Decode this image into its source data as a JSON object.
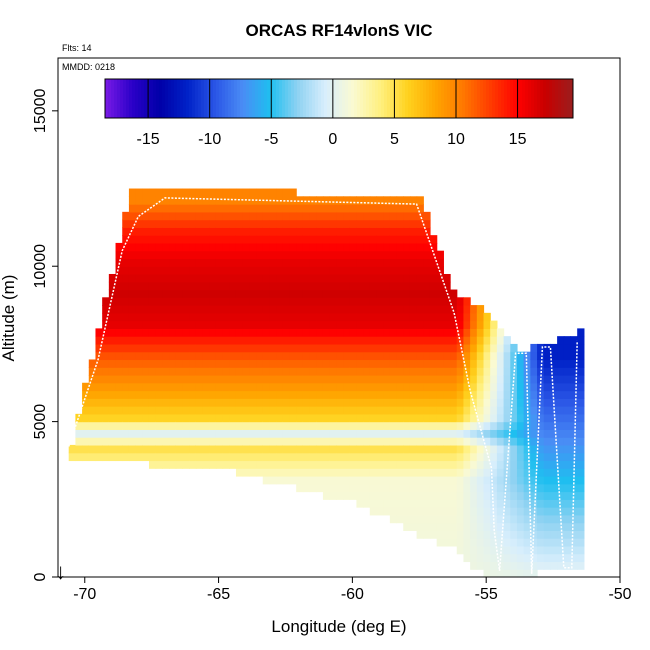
{
  "chart_data": {
    "type": "heatmap",
    "title": "ORCAS RF14vlonS VIC",
    "annotations": {
      "flts": "Flts: 14",
      "mmdd": "MMDD: 0218"
    },
    "xlabel": "Longitude (deg E)",
    "ylabel": "Altitude (m)",
    "xlim": [
      -71,
      -50
    ],
    "ylim": [
      0,
      16700
    ],
    "x_ticks": [
      -70,
      -65,
      -60,
      -55,
      -50
    ],
    "y_ticks": [
      0,
      5000,
      10000,
      15000
    ],
    "colorbar": {
      "range": [
        -18.5,
        19.5
      ],
      "ticks": [
        -15,
        -10,
        -5,
        0,
        5,
        10,
        15
      ],
      "colors": [
        "#7a1ae6",
        "#2a00c8",
        "#0000a8",
        "#0022c8",
        "#2a55e6",
        "#4a8cf5",
        "#1ebff0",
        "#8fd2f2",
        "#d8eefc",
        "#fafad2",
        "#fff080",
        "#ffd21e",
        "#ffa500",
        "#ff7800",
        "#ff3c00",
        "#ff0000",
        "#c80000",
        "#9b1e1e"
      ]
    },
    "profiles": [
      {
        "lon": -70.6,
        "alt_max": 4200,
        "alt_min": 3800
      },
      {
        "lon": -68.4,
        "alt_max": 12300,
        "alt_min": 3800
      },
      {
        "lon": -64.5,
        "alt_max": 12300,
        "alt_min": 3500
      },
      {
        "lon": -60.0,
        "alt_max": 12200,
        "alt_min": 2500
      },
      {
        "lon": -57.6,
        "alt_max": 12100,
        "alt_min": 1500
      },
      {
        "lon": -56.3,
        "alt_max": 9000,
        "alt_min": 1000
      },
      {
        "lon": -55.0,
        "alt_max": 8400,
        "alt_min": 0
      },
      {
        "lon": -53.8,
        "alt_max": 7200,
        "alt_min": 200
      },
      {
        "lon": -52.7,
        "alt_max": 7400,
        "alt_min": 300
      },
      {
        "lon": -51.5,
        "alt_max": 7800,
        "alt_min": 300
      }
    ],
    "temperature_levels": [
      {
        "alt": 0,
        "value": 1
      },
      {
        "alt": 3000,
        "value": 1.5
      },
      {
        "alt": 4000,
        "value": 5
      },
      {
        "alt": 4500,
        "value": 0
      },
      {
        "alt": 5000,
        "value": 6
      },
      {
        "alt": 6000,
        "value": 9
      },
      {
        "alt": 7000,
        "value": 12
      },
      {
        "alt": 8000,
        "value": 16
      },
      {
        "alt": 9000,
        "value": 17
      },
      {
        "alt": 10000,
        "value": 16
      },
      {
        "alt": 11000,
        "value": 14
      },
      {
        "alt": 12000,
        "value": 10
      }
    ],
    "gradient_zone": {
      "west_lon": -56.2,
      "east_lon": -53.0,
      "east_offset": -12
    },
    "flight_track": [
      [
        -70.6,
        4200
      ],
      [
        -69.5,
        7000
      ],
      [
        -68.6,
        10500
      ],
      [
        -68.0,
        11600
      ],
      [
        -67.0,
        12200
      ],
      [
        -57.6,
        12000
      ],
      [
        -56.2,
        8500
      ],
      [
        -55.6,
        6000
      ],
      [
        -54.8,
        3500
      ],
      [
        -54.7,
        1500
      ],
      [
        -54.5,
        200
      ],
      [
        -53.9,
        7200
      ],
      [
        -53.5,
        7200
      ],
      [
        -53.3,
        100
      ],
      [
        -52.9,
        7400
      ],
      [
        -52.6,
        7400
      ],
      [
        -52.1,
        300
      ],
      [
        -51.8,
        300
      ],
      [
        -51.6,
        7600
      ]
    ],
    "marker": {
      "lon": -70.9,
      "label": "↓"
    }
  }
}
